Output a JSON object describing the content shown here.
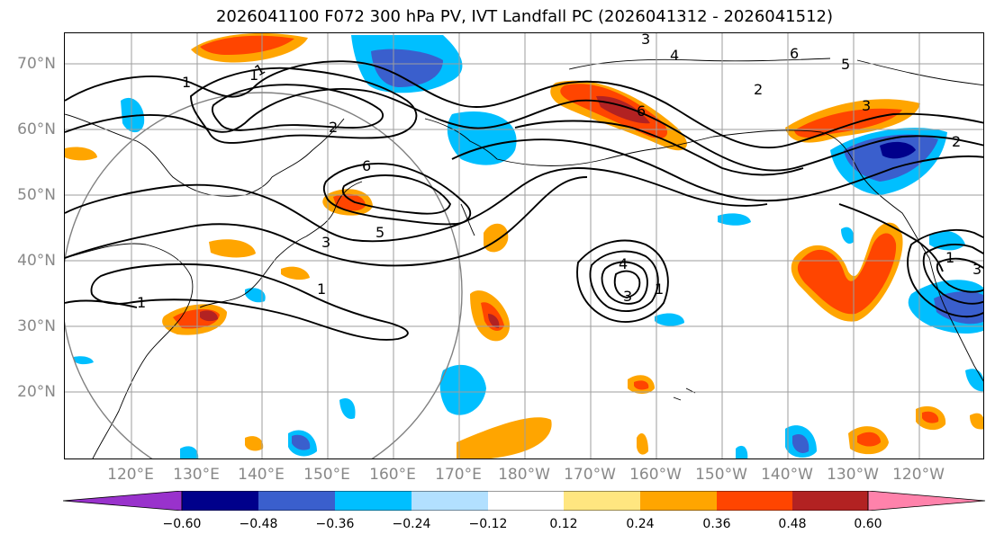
{
  "title": "2026041100 F072 300 hPa PV, IVT Landfall PC (2026041312 - 2026041512)",
  "map": {
    "lat_labels": [
      "70°N",
      "60°N",
      "50°N",
      "40°N",
      "30°N",
      "20°N"
    ],
    "lon_labels": [
      "120°E",
      "130°E",
      "140°E",
      "150°E",
      "160°E",
      "170°E",
      "180°W",
      "170°W",
      "160°W",
      "150°W",
      "140°W",
      "130°W",
      "120°W"
    ],
    "contour_labels": [
      "1",
      "2",
      "3",
      "4",
      "5",
      "6"
    ],
    "gridline_color": "#9e9e9e",
    "contour_color": "#000000"
  },
  "colorbar": {
    "tick_labels": [
      "−0.60",
      "−0.48",
      "−0.36",
      "−0.24",
      "−0.12",
      "0.12",
      "0.24",
      "0.36",
      "0.48",
      "0.60"
    ],
    "colors": [
      "#9932cc",
      "#00008b",
      "#3a5fcd",
      "#00bfff",
      "#b2e0ff",
      "#ffffff",
      "#ffe680",
      "#ffa500",
      "#ff4500",
      "#b22222",
      "#ff82ab"
    ]
  }
}
